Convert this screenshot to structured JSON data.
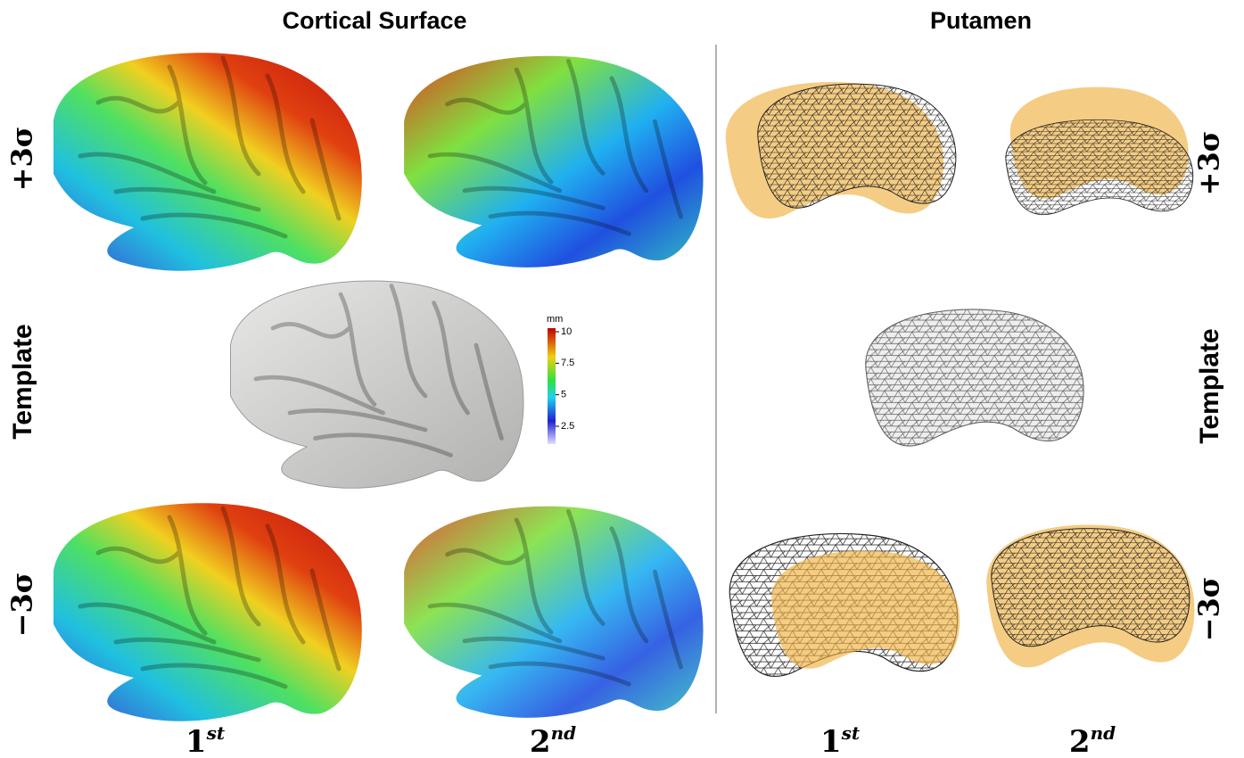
{
  "header": {
    "left_title": "Cortical Surface",
    "right_title": "Putamen"
  },
  "row_labels": {
    "top": "+3σ",
    "middle": "Template",
    "bottom": "−3σ"
  },
  "column_labels": [
    {
      "base": "1",
      "sup": "st"
    },
    {
      "base": "2",
      "sup": "nd"
    }
  ],
  "colorbar": {
    "unit": "mm",
    "ticks": [
      10,
      7.5,
      5,
      2.5
    ]
  }
}
